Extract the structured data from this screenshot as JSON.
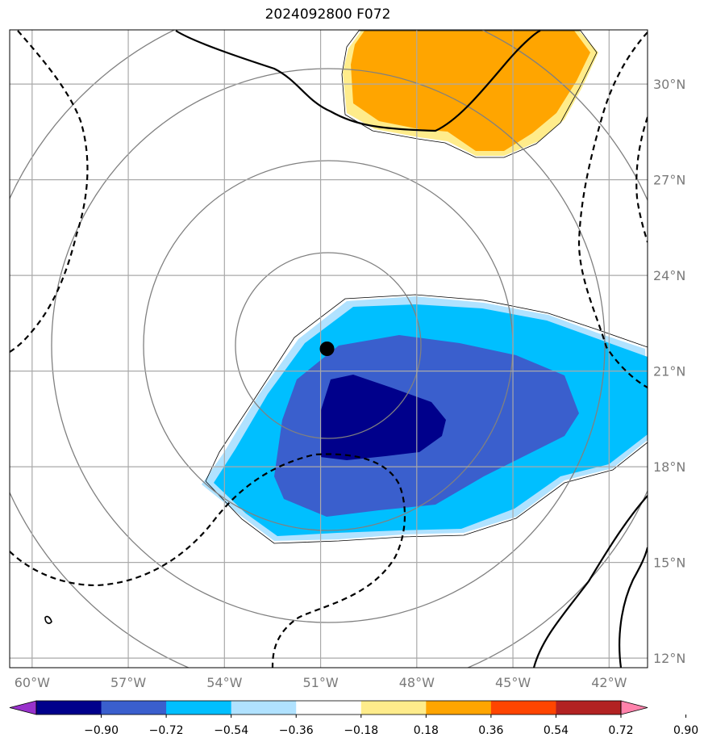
{
  "title": "2024092800 F072",
  "chart_data": {
    "type": "map",
    "title": "2024092800 F072",
    "lon_range": [
      -60.7,
      -40.8
    ],
    "lat_range": [
      11.7,
      31.7
    ],
    "lon_ticks": [
      {
        "value": -60,
        "label": "60°W"
      },
      {
        "value": -57,
        "label": "57°W"
      },
      {
        "value": -54,
        "label": "54°W"
      },
      {
        "value": -51,
        "label": "51°W"
      },
      {
        "value": -48,
        "label": "48°W"
      },
      {
        "value": -45,
        "label": "45°W"
      },
      {
        "value": -42,
        "label": "42°W"
      }
    ],
    "lat_ticks": [
      {
        "value": 12,
        "label": "12°N"
      },
      {
        "value": 15,
        "label": "15°N"
      },
      {
        "value": 18,
        "label": "18°N"
      },
      {
        "value": 21,
        "label": "21°N"
      },
      {
        "value": 24,
        "label": "24°N"
      },
      {
        "value": 27,
        "label": "27°N"
      },
      {
        "value": 30,
        "label": "30°N"
      }
    ],
    "grid": true,
    "storm_center": {
      "lon": -50.8,
      "lat": 21.7
    },
    "colorbar": {
      "extend": "both",
      "labels": [
        "−0.90",
        "−0.72",
        "−0.54",
        "−0.36",
        "−0.18",
        "0.18",
        "0.36",
        "0.54",
        "0.72",
        "0.90"
      ],
      "colors": [
        "#9932cc",
        "#00008b",
        "#3a5fcd",
        "#00bfff",
        "#b0e2ff",
        "#ffffff",
        "#ffec8b",
        "#ffa500",
        "#ff4500",
        "#b22222",
        "#ff82ab"
      ]
    },
    "shaded_regions": [
      {
        "level": "0.18 to 0.36",
        "color": "#ffec8b"
      },
      {
        "level": "0.36 to 0.54",
        "color": "#ffa500"
      },
      {
        "level": "-0.36 to -0.18",
        "color": "#b0e2ff"
      },
      {
        "level": "-0.54 to -0.36",
        "color": "#00bfff"
      },
      {
        "level": "-0.72 to -0.54",
        "color": "#3a5fcd"
      },
      {
        "level": "-0.90 to -0.72",
        "color": "#00008b"
      }
    ]
  }
}
